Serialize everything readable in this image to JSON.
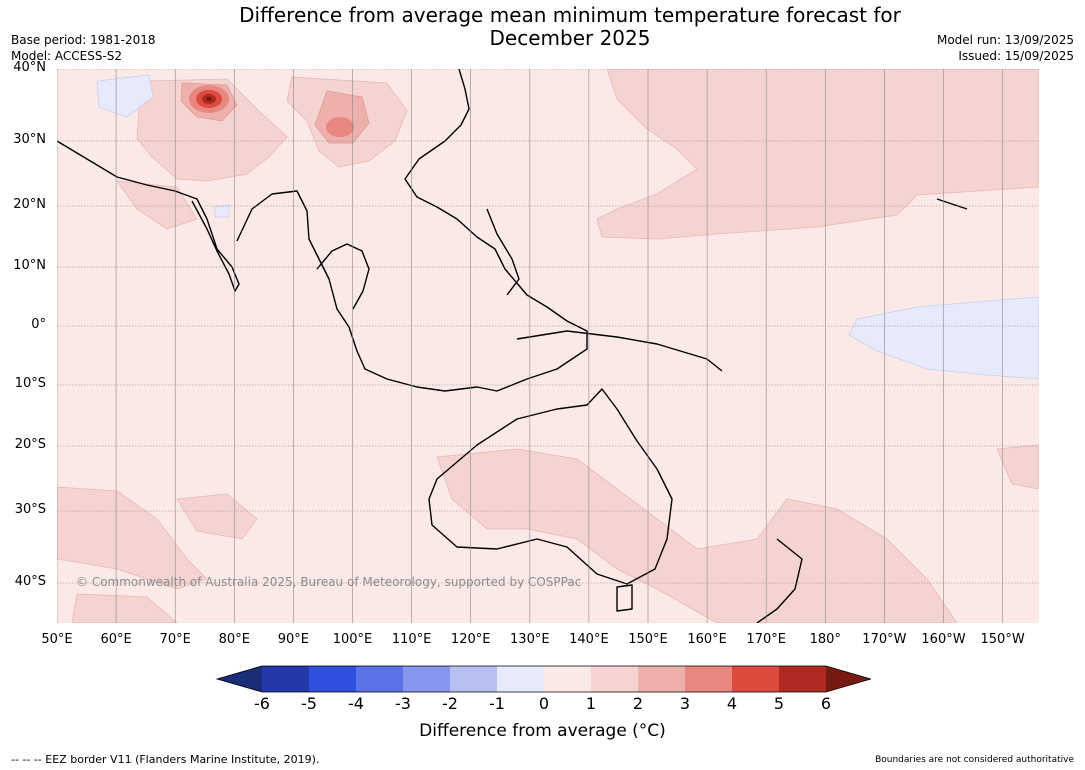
{
  "header": {
    "title": "Difference from average mean minimum temperature forecast for\nDecember 2025",
    "base_period": "Base period: 1981-2018",
    "model": "Model: ACCESS-S2",
    "model_run": "Model run: 13/09/2025",
    "issued": "Issued: 15/09/2025"
  },
  "map": {
    "lat_labels": [
      "40°N",
      "30°N",
      "20°N",
      "10°N",
      "0°",
      "10°S",
      "20°S",
      "30°S",
      "40°S"
    ],
    "lon_labels": [
      "50°E",
      "60°E",
      "70°E",
      "80°E",
      "90°E",
      "100°E",
      "110°E",
      "120°E",
      "130°E",
      "140°E",
      "150°E",
      "160°E",
      "170°E",
      "180°",
      "170°W",
      "160°W",
      "150°W"
    ],
    "copyright": "© Commonwealth of Australia 2025, Bureau of Meteorology, supported by COSPPac",
    "background_color": "#fbe9e7"
  },
  "colorbar": {
    "label": "Difference from average (°C)",
    "ticks": [
      "-6",
      "-5",
      "-4",
      "-3",
      "-2",
      "-1",
      "0",
      "1",
      "2",
      "3",
      "4",
      "5",
      "6"
    ],
    "colors": [
      "#2538a8",
      "#3050e0",
      "#5a72e6",
      "#8696ec",
      "#b8c0f2",
      "#e6eafb",
      "#fbe9e7",
      "#f5d3d1",
      "#eeb0ac",
      "#e88680",
      "#dd4a3e",
      "#b02a24"
    ],
    "under_color": "#1b2c78",
    "over_color": "#781a14"
  },
  "footer": {
    "eez_note": "--  --  -- EEZ border V11 (Flanders Marine Institute, 2019).",
    "boundaries_note": "Boundaries are not considered authoritative"
  }
}
